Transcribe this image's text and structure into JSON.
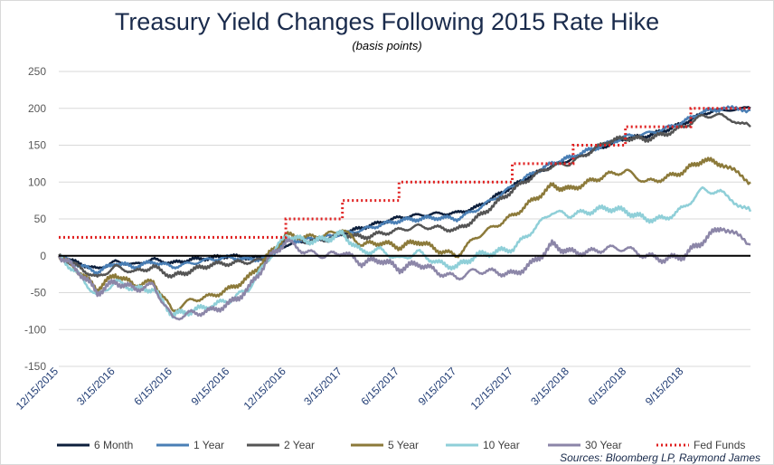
{
  "title": "Treasury Yield Changes Following 2015 Rate Hike",
  "subtitle": "(basis points)",
  "source": "Sources: Bloomberg LP, Raymond James",
  "chart_data": {
    "type": "line",
    "title": "Treasury Yield Changes Following 2015 Rate Hike",
    "subtitle": "(basis points)",
    "xlabel": "",
    "ylabel": "",
    "ylim": [
      -150,
      250
    ],
    "yticks": [
      -150,
      -100,
      -50,
      0,
      50,
      100,
      150,
      200,
      250
    ],
    "xlim": [
      "12/15/2015",
      "12/31/2018"
    ],
    "xticks": [
      "12/15/2015",
      "3/15/2016",
      "6/15/2016",
      "9/15/2016",
      "12/15/2016",
      "3/15/2017",
      "6/15/2017",
      "9/15/2017",
      "12/15/2017",
      "3/15/2018",
      "6/15/2018",
      "9/15/2018"
    ],
    "grid": "horizontal",
    "legend_position": "bottom",
    "series": [
      {
        "name": "6 Month",
        "color": "#0d1f3c",
        "style": "solid",
        "points": [
          [
            "12/15/2015",
            0
          ],
          [
            "1/15/2016",
            -10
          ],
          [
            "2/15/2016",
            -18
          ],
          [
            "3/15/2016",
            -8
          ],
          [
            "4/15/2016",
            -12
          ],
          [
            "5/15/2016",
            -5
          ],
          [
            "6/15/2016",
            -10
          ],
          [
            "7/15/2016",
            -5
          ],
          [
            "8/15/2016",
            -3
          ],
          [
            "9/15/2016",
            0
          ],
          [
            "10/15/2016",
            -3
          ],
          [
            "11/15/2016",
            -2
          ],
          [
            "12/15/2016",
            15
          ],
          [
            "1/15/2017",
            20
          ],
          [
            "2/15/2017",
            22
          ],
          [
            "3/15/2017",
            30
          ],
          [
            "4/15/2017",
            38
          ],
          [
            "5/15/2017",
            45
          ],
          [
            "6/15/2017",
            52
          ],
          [
            "7/15/2017",
            55
          ],
          [
            "8/15/2017",
            57
          ],
          [
            "9/15/2017",
            58
          ],
          [
            "10/15/2017",
            65
          ],
          [
            "11/15/2017",
            80
          ],
          [
            "12/15/2017",
            95
          ],
          [
            "1/15/2018",
            110
          ],
          [
            "2/15/2018",
            122
          ],
          [
            "3/15/2018",
            130
          ],
          [
            "4/15/2018",
            140
          ],
          [
            "5/15/2018",
            150
          ],
          [
            "6/15/2018",
            160
          ],
          [
            "7/15/2018",
            162
          ],
          [
            "8/15/2018",
            170
          ],
          [
            "9/15/2018",
            180
          ],
          [
            "10/15/2018",
            193
          ],
          [
            "11/15/2018",
            198
          ],
          [
            "12/31/2018",
            200
          ]
        ]
      },
      {
        "name": "1 Year",
        "color": "#4a7fb5",
        "style": "solid",
        "points": [
          [
            "12/15/2015",
            0
          ],
          [
            "1/15/2016",
            -12
          ],
          [
            "2/15/2016",
            -22
          ],
          [
            "3/15/2016",
            -10
          ],
          [
            "4/15/2016",
            -15
          ],
          [
            "5/15/2016",
            -8
          ],
          [
            "6/15/2016",
            -15
          ],
          [
            "7/15/2016",
            -10
          ],
          [
            "8/15/2016",
            -5
          ],
          [
            "9/15/2016",
            -2
          ],
          [
            "10/15/2016",
            -5
          ],
          [
            "11/15/2016",
            -3
          ],
          [
            "12/15/2016",
            20
          ],
          [
            "1/15/2017",
            22
          ],
          [
            "2/15/2017",
            25
          ],
          [
            "3/15/2017",
            30
          ],
          [
            "4/15/2017",
            35
          ],
          [
            "5/15/2017",
            42
          ],
          [
            "6/15/2017",
            48
          ],
          [
            "7/15/2017",
            50
          ],
          [
            "8/15/2017",
            52
          ],
          [
            "9/15/2017",
            50
          ],
          [
            "10/15/2017",
            62
          ],
          [
            "11/15/2017",
            78
          ],
          [
            "12/15/2017",
            95
          ],
          [
            "1/15/2018",
            112
          ],
          [
            "2/15/2018",
            125
          ],
          [
            "3/15/2018",
            133
          ],
          [
            "4/15/2018",
            143
          ],
          [
            "5/15/2018",
            152
          ],
          [
            "6/15/2018",
            162
          ],
          [
            "7/15/2018",
            165
          ],
          [
            "8/15/2018",
            172
          ],
          [
            "9/15/2018",
            182
          ],
          [
            "10/15/2018",
            195
          ],
          [
            "11/15/2018",
            200
          ],
          [
            "12/31/2018",
            198
          ]
        ]
      },
      {
        "name": "2 Year",
        "color": "#555555",
        "style": "solid",
        "points": [
          [
            "12/15/2015",
            0
          ],
          [
            "1/15/2016",
            -15
          ],
          [
            "2/15/2016",
            -30
          ],
          [
            "3/15/2016",
            -15
          ],
          [
            "4/15/2016",
            -22
          ],
          [
            "5/15/2016",
            -15
          ],
          [
            "6/15/2016",
            -28
          ],
          [
            "7/15/2016",
            -20
          ],
          [
            "8/15/2016",
            -12
          ],
          [
            "9/15/2016",
            -10
          ],
          [
            "10/15/2016",
            -8
          ],
          [
            "11/15/2016",
            -5
          ],
          [
            "12/15/2016",
            25
          ],
          [
            "1/15/2017",
            20
          ],
          [
            "2/15/2017",
            22
          ],
          [
            "3/15/2017",
            30
          ],
          [
            "4/15/2017",
            25
          ],
          [
            "5/15/2017",
            30
          ],
          [
            "6/15/2017",
            35
          ],
          [
            "7/15/2017",
            40
          ],
          [
            "8/15/2017",
            38
          ],
          [
            "9/15/2017",
            35
          ],
          [
            "10/15/2017",
            50
          ],
          [
            "11/15/2017",
            70
          ],
          [
            "12/15/2017",
            90
          ],
          [
            "1/15/2018",
            108
          ],
          [
            "2/15/2018",
            122
          ],
          [
            "3/15/2018",
            125
          ],
          [
            "4/15/2018",
            140
          ],
          [
            "5/15/2018",
            155
          ],
          [
            "6/15/2018",
            160
          ],
          [
            "7/15/2018",
            158
          ],
          [
            "8/15/2018",
            165
          ],
          [
            "9/15/2018",
            175
          ],
          [
            "10/15/2018",
            190
          ],
          [
            "11/15/2018",
            190
          ],
          [
            "12/31/2018",
            175
          ]
        ]
      },
      {
        "name": "5 Year",
        "color": "#8c7a3a",
        "style": "solid",
        "points": [
          [
            "12/15/2015",
            0
          ],
          [
            "1/15/2016",
            -20
          ],
          [
            "2/15/2016",
            -45
          ],
          [
            "3/15/2016",
            -25
          ],
          [
            "4/15/2016",
            -40
          ],
          [
            "5/15/2016",
            -35
          ],
          [
            "6/15/2016",
            -75
          ],
          [
            "7/15/2016",
            -60
          ],
          [
            "8/15/2016",
            -55
          ],
          [
            "9/15/2016",
            -45
          ],
          [
            "10/15/2016",
            -30
          ],
          [
            "11/15/2016",
            0
          ],
          [
            "12/15/2016",
            28
          ],
          [
            "1/15/2017",
            25
          ],
          [
            "2/15/2017",
            28
          ],
          [
            "3/15/2017",
            35
          ],
          [
            "4/15/2017",
            15
          ],
          [
            "5/15/2017",
            18
          ],
          [
            "6/15/2017",
            12
          ],
          [
            "7/15/2017",
            20
          ],
          [
            "8/15/2017",
            8
          ],
          [
            "9/15/2017",
            0
          ],
          [
            "10/15/2017",
            25
          ],
          [
            "11/15/2017",
            40
          ],
          [
            "12/15/2017",
            55
          ],
          [
            "1/15/2018",
            75
          ],
          [
            "2/15/2018",
            95
          ],
          [
            "3/15/2018",
            90
          ],
          [
            "4/15/2018",
            100
          ],
          [
            "5/15/2018",
            110
          ],
          [
            "6/15/2018",
            115
          ],
          [
            "7/15/2018",
            100
          ],
          [
            "8/15/2018",
            105
          ],
          [
            "9/15/2018",
            115
          ],
          [
            "10/15/2018",
            130
          ],
          [
            "11/15/2018",
            125
          ],
          [
            "12/31/2018",
            100
          ]
        ]
      },
      {
        "name": "10 Year",
        "color": "#8fcfd8",
        "style": "solid",
        "points": [
          [
            "12/15/2015",
            0
          ],
          [
            "1/15/2016",
            -25
          ],
          [
            "2/15/2016",
            -55
          ],
          [
            "3/15/2016",
            -35
          ],
          [
            "4/15/2016",
            -45
          ],
          [
            "5/15/2016",
            -45
          ],
          [
            "6/15/2016",
            -80
          ],
          [
            "7/15/2016",
            -75
          ],
          [
            "8/15/2016",
            -68
          ],
          [
            "9/15/2016",
            -60
          ],
          [
            "10/15/2016",
            -45
          ],
          [
            "11/15/2016",
            -5
          ],
          [
            "12/15/2016",
            28
          ],
          [
            "1/15/2017",
            20
          ],
          [
            "2/15/2017",
            22
          ],
          [
            "3/15/2017",
            30
          ],
          [
            "4/15/2017",
            5
          ],
          [
            "5/15/2017",
            8
          ],
          [
            "6/15/2017",
            -5
          ],
          [
            "7/15/2017",
            5
          ],
          [
            "8/15/2017",
            -10
          ],
          [
            "9/15/2017",
            -15
          ],
          [
            "10/15/2017",
            0
          ],
          [
            "11/15/2017",
            5
          ],
          [
            "12/15/2017",
            10
          ],
          [
            "1/15/2018",
            35
          ],
          [
            "2/15/2018",
            60
          ],
          [
            "3/15/2018",
            55
          ],
          [
            "4/15/2018",
            60
          ],
          [
            "5/15/2018",
            65
          ],
          [
            "6/15/2018",
            60
          ],
          [
            "7/15/2018",
            50
          ],
          [
            "8/15/2018",
            50
          ],
          [
            "9/15/2018",
            65
          ],
          [
            "10/15/2018",
            90
          ],
          [
            "11/15/2018",
            85
          ],
          [
            "12/31/2018",
            60
          ]
        ]
      },
      {
        "name": "30 Year",
        "color": "#8c86a8",
        "style": "solid",
        "points": [
          [
            "12/15/2015",
            0
          ],
          [
            "1/15/2016",
            -20
          ],
          [
            "2/15/2016",
            -50
          ],
          [
            "3/15/2016",
            -35
          ],
          [
            "4/15/2016",
            -45
          ],
          [
            "5/15/2016",
            -40
          ],
          [
            "6/15/2016",
            -85
          ],
          [
            "7/15/2016",
            -78
          ],
          [
            "8/15/2016",
            -75
          ],
          [
            "9/15/2016",
            -65
          ],
          [
            "10/15/2016",
            -45
          ],
          [
            "11/15/2016",
            -5
          ],
          [
            "12/15/2016",
            20
          ],
          [
            "1/15/2017",
            5
          ],
          [
            "2/15/2017",
            0
          ],
          [
            "3/15/2017",
            5
          ],
          [
            "4/15/2017",
            -10
          ],
          [
            "5/15/2017",
            -5
          ],
          [
            "6/15/2017",
            -18
          ],
          [
            "7/15/2017",
            -10
          ],
          [
            "8/15/2017",
            -22
          ],
          [
            "9/15/2017",
            -30
          ],
          [
            "10/15/2017",
            -20
          ],
          [
            "11/15/2017",
            -22
          ],
          [
            "12/15/2017",
            -25
          ],
          [
            "1/15/2018",
            -10
          ],
          [
            "2/15/2018",
            15
          ],
          [
            "3/15/2018",
            5
          ],
          [
            "4/15/2018",
            5
          ],
          [
            "5/15/2018",
            10
          ],
          [
            "6/15/2018",
            10
          ],
          [
            "7/15/2018",
            0
          ],
          [
            "8/15/2018",
            -5
          ],
          [
            "9/15/2018",
            0
          ],
          [
            "10/15/2018",
            20
          ],
          [
            "11/15/2018",
            40
          ],
          [
            "12/31/2018",
            15
          ]
        ]
      },
      {
        "name": "Fed Funds",
        "color": "#e02020",
        "style": "dotted",
        "step": true,
        "points": [
          [
            "12/15/2015",
            25
          ],
          [
            "12/14/2016",
            50
          ],
          [
            "3/15/2017",
            75
          ],
          [
            "6/14/2017",
            100
          ],
          [
            "12/13/2017",
            125
          ],
          [
            "3/21/2018",
            150
          ],
          [
            "6/13/2018",
            175
          ],
          [
            "9/26/2018",
            200
          ],
          [
            "12/19/2018",
            200
          ],
          [
            "12/31/2018",
            200
          ]
        ]
      }
    ]
  }
}
